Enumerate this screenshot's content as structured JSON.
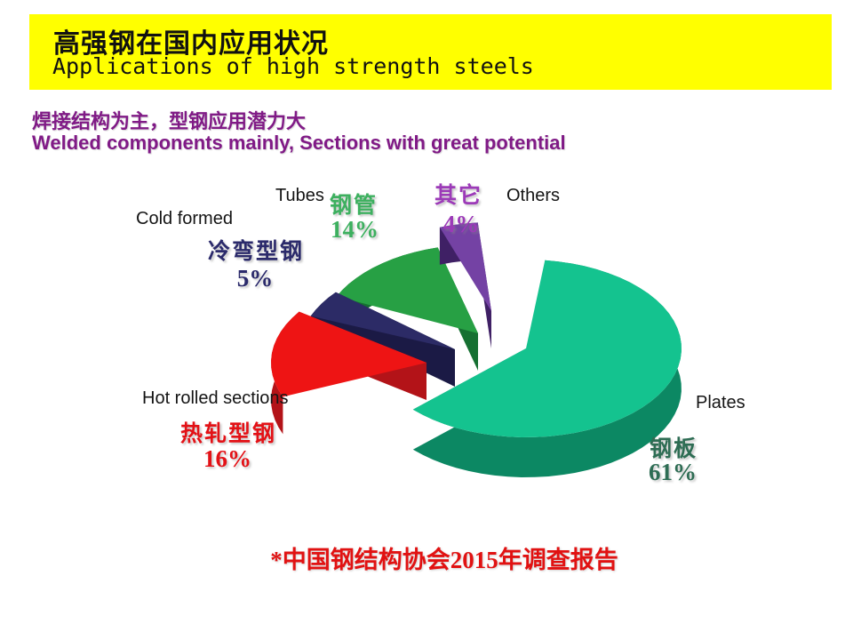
{
  "slide": {
    "header": {
      "title_zh": "高强钢在国内应用状况",
      "title_en": "Applications of high strength steels",
      "bg": "#FFFF00"
    },
    "subtitle": {
      "zh": "焊接结构为主，型钢应用潜力大",
      "en": "Welded components mainly, Sections with great potential",
      "color": "#801A86"
    },
    "footnote": {
      "text": "*中国钢结构协会2015年调查报告",
      "color": "#E11212"
    }
  },
  "chart_data": {
    "type": "pie",
    "style": "3d-exploded-pie",
    "unit": "%",
    "legend_position": "none",
    "title": "",
    "slices": [
      {
        "label_en": "Plates",
        "label_zh": "钢板",
        "value": 61,
        "pct": "61%",
        "color": "#14C38F",
        "side_color": "#0C8863",
        "label_color": "#2E6D54"
      },
      {
        "label_en": "Others",
        "label_zh": "其它",
        "value": 4,
        "pct": "4%",
        "color": "#7442A4",
        "side_color": "#3F2065",
        "label_color": "#9C3AB8"
      },
      {
        "label_en": "Tubes",
        "label_zh": "钢管",
        "value": 14,
        "pct": "14%",
        "color": "#27A044",
        "side_color": "#167032",
        "label_color": "#3DB05F"
      },
      {
        "label_en": "Cold formed",
        "label_zh": "冷弯型钢",
        "value": 5,
        "pct": "5%",
        "color": "#2C2B66",
        "side_color": "#1B1A45",
        "label_color": "#2B2A6B"
      },
      {
        "label_en": "Hot rolled sections",
        "label_zh": "热轧型钢",
        "value": 16,
        "pct": "16%",
        "color": "#EE1414",
        "side_color": "#B31318",
        "label_color": "#E31116"
      }
    ]
  }
}
